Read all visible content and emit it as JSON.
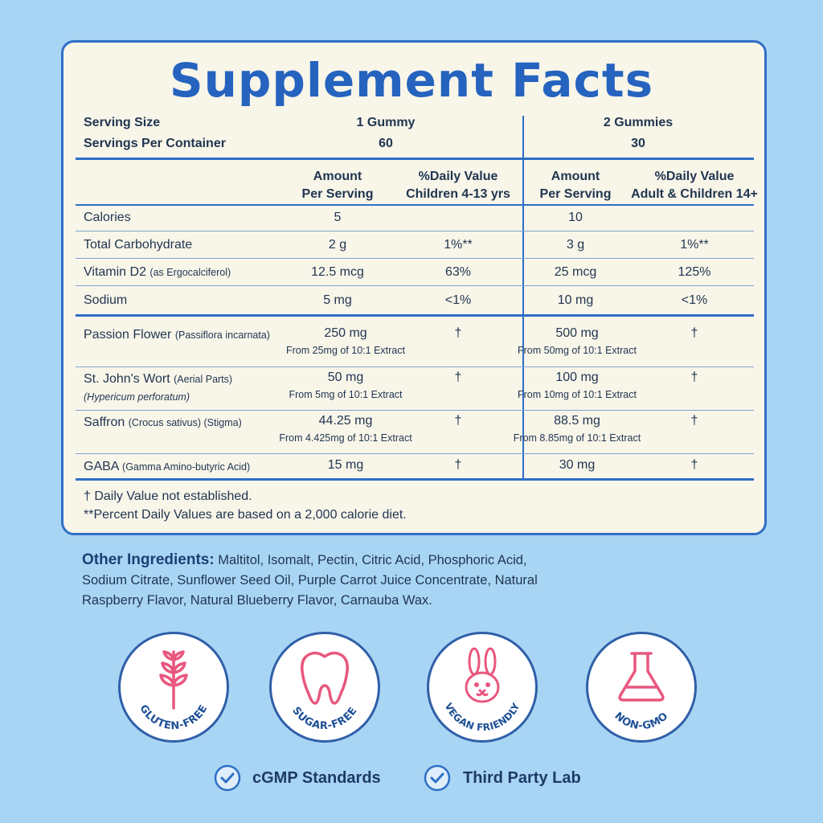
{
  "title": "Supplement Facts",
  "serving": {
    "size_label": "Serving Size",
    "per_container_label": "Servings Per Container",
    "size_child": "1 Gummy",
    "count_child": "60",
    "size_adult": "2 Gummies",
    "count_adult": "30"
  },
  "headers": {
    "amount_child": [
      "Amount",
      "Per Serving"
    ],
    "dv_child": [
      "%Daily Value",
      "Children 4-13 yrs"
    ],
    "amount_adult": [
      "Amount",
      "Per Serving"
    ],
    "dv_adult": [
      "%Daily Value",
      "Adult & Children 14+"
    ]
  },
  "nutrients": [
    {
      "name": "Calories",
      "note": "",
      "amt1": "5",
      "dv1": "",
      "amt2": "10",
      "dv2": ""
    },
    {
      "name": "Total Carbohydrate",
      "note": "",
      "amt1": "2 g",
      "dv1": "1%**",
      "amt2": "3 g",
      "dv2": "1%**"
    },
    {
      "name": "Vitamin D2",
      "note": "(as Ergocalciferol)",
      "amt1": "12.5 mcg",
      "dv1": "63%",
      "amt2": "25 mcg",
      "dv2": "125%"
    },
    {
      "name": "Sodium",
      "note": "",
      "amt1": "5 mg",
      "dv1": "<1%",
      "amt2": "10 mg",
      "dv2": "<1%"
    }
  ],
  "botanicals": [
    {
      "name": "Passion Flower",
      "note": "(Passiflora incarnata)",
      "note2": "",
      "amt1": "250 mg",
      "ext1": "From 25mg of 10:1 Extract",
      "dv1": "†",
      "amt2": "500 mg",
      "ext2": "From 50mg of 10:1 Extract",
      "dv2": "†"
    },
    {
      "name": "St. John's Wort",
      "note": "(Aerial Parts)",
      "note2": "(Hypericum perforatum)",
      "amt1": "50 mg",
      "ext1": "From 5mg of 10:1 Extract",
      "dv1": "†",
      "amt2": "100 mg",
      "ext2": "From 10mg of 10:1 Extract",
      "dv2": "†"
    },
    {
      "name": "Saffron",
      "note": "(Crocus sativus) (Stigma)",
      "note2": "",
      "amt1": "44.25 mg",
      "ext1": "From 4.425mg of 10:1 Extract",
      "dv1": "†",
      "amt2": "88.5 mg",
      "ext2": "From 8.85mg of 10:1 Extract",
      "dv2": "†"
    },
    {
      "name": "GABA",
      "note": "(Gamma Amino-butyric Acid)",
      "note2": "",
      "amt1": "15 mg",
      "ext1": "",
      "dv1": "†",
      "amt2": "30 mg",
      "ext2": "",
      "dv2": "†"
    }
  ],
  "footnotes": [
    "† Daily Value not established.",
    "**Percent Daily Values are based on a 2,000 calorie diet."
  ],
  "other_ingredients": {
    "heading": "Other Ingredients:",
    "lines": [
      "Maltitol, Isomalt, Pectin, Citric Acid, Phosphoric Acid,",
      "Sodium Citrate, Sunflower Seed Oil, Purple Carrot Juice Concentrate, Natural",
      "Raspberry Flavor, Natural Blueberry Flavor, Carnauba Wax."
    ]
  },
  "badges": [
    {
      "label": "GLUTEN-FREE",
      "icon": "wheat-icon"
    },
    {
      "label": "SUGAR-FREE",
      "icon": "tooth-icon"
    },
    {
      "label": "VEGAN FRIENDLY",
      "icon": "bunny-icon"
    },
    {
      "label": "NON-GMO",
      "icon": "flask-icon"
    }
  ],
  "certifications": [
    {
      "label": "cGMP Standards"
    },
    {
      "label": "Third Party Lab"
    }
  ],
  "colors": {
    "background": "#a9d5f5",
    "panel": "#f8f5e9",
    "accent_blue": "#2563bf",
    "icon_pink": "#e8577e"
  }
}
